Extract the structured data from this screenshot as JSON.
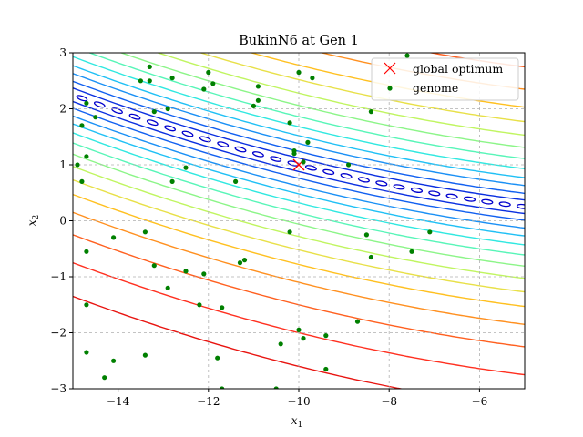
{
  "chart_data": {
    "type": "scatter",
    "title": "BukinN6 at Gen 1",
    "xlabel": "x",
    "xlabel_sub": "1",
    "ylabel": "x",
    "ylabel_sub": "2",
    "xlim": [
      -15,
      -5
    ],
    "ylim": [
      -3,
      3
    ],
    "xticks": [
      -14,
      -12,
      -10,
      -8,
      -6
    ],
    "yticks": [
      -3,
      -2,
      -1,
      0,
      1,
      2,
      3
    ],
    "xtick_labels": [
      "−14",
      "−12",
      "−10",
      "−8",
      "−6"
    ],
    "ytick_labels": [
      "−3",
      "−2",
      "−1",
      "0",
      "1",
      "2",
      "3"
    ],
    "grid": true,
    "legend_position": "top-right",
    "background_function": "BukinN6 contour",
    "series": [
      {
        "name": "global optimum",
        "marker": "x",
        "color": "#ff0000",
        "points": [
          [
            -10,
            1
          ]
        ]
      },
      {
        "name": "genome",
        "marker": "dot",
        "color": "#008000",
        "points": [
          [
            -14.7,
            2.1
          ],
          [
            -14.8,
            1.7
          ],
          [
            -14.5,
            1.85
          ],
          [
            -14.9,
            1.0
          ],
          [
            -14.8,
            0.7
          ],
          [
            -14.7,
            1.15
          ],
          [
            -14.1,
            -0.3
          ],
          [
            -14.7,
            -0.55
          ],
          [
            -14.7,
            -1.5
          ],
          [
            -14.7,
            -2.35
          ],
          [
            -14.3,
            -2.8
          ],
          [
            -14.1,
            -2.5
          ],
          [
            -13.5,
            2.5
          ],
          [
            -13.3,
            2.75
          ],
          [
            -13.3,
            2.5
          ],
          [
            -13.2,
            1.95
          ],
          [
            -12.9,
            2.0
          ],
          [
            -12.8,
            2.55
          ],
          [
            -12.1,
            2.35
          ],
          [
            -12.0,
            2.65
          ],
          [
            -11.9,
            2.45
          ],
          [
            -12.5,
            0.95
          ],
          [
            -12.8,
            0.7
          ],
          [
            -13.4,
            -0.2
          ],
          [
            -13.2,
            -0.8
          ],
          [
            -12.5,
            -0.9
          ],
          [
            -12.9,
            -1.2
          ],
          [
            -12.1,
            -0.95
          ],
          [
            -12.2,
            -1.5
          ],
          [
            -11.7,
            -1.55
          ],
          [
            -13.4,
            -2.4
          ],
          [
            -11.8,
            -2.45
          ],
          [
            -11.7,
            -3.0
          ],
          [
            -11.2,
            -0.7
          ],
          [
            -11.3,
            -0.75
          ],
          [
            -11.4,
            0.7
          ],
          [
            -11.0,
            2.05
          ],
          [
            -10.9,
            2.15
          ],
          [
            -10.9,
            2.4
          ],
          [
            -10.2,
            1.75
          ],
          [
            -10.1,
            1.2
          ],
          [
            -10.1,
            1.25
          ],
          [
            -9.9,
            1.05
          ],
          [
            -9.8,
            1.4
          ],
          [
            -10.0,
            2.65
          ],
          [
            -9.7,
            2.55
          ],
          [
            -10.2,
            -0.2
          ],
          [
            -10.4,
            -2.2
          ],
          [
            -10.0,
            -1.95
          ],
          [
            -9.9,
            -2.1
          ],
          [
            -10.5,
            -3.0
          ],
          [
            -9.4,
            -2.05
          ],
          [
            -9.4,
            -2.65
          ],
          [
            -8.9,
            1.0
          ],
          [
            -8.5,
            -0.25
          ],
          [
            -8.7,
            -1.8
          ],
          [
            -8.4,
            -0.65
          ],
          [
            -8.4,
            1.95
          ],
          [
            -7.6,
            2.95
          ],
          [
            -7.5,
            -0.55
          ],
          [
            -7.1,
            -0.2
          ]
        ]
      }
    ]
  },
  "contour_colors": [
    "#0000cd",
    "#0a2fe0",
    "#1260f0",
    "#1a90f5",
    "#20c0f5",
    "#30e8e0",
    "#58f5b8",
    "#8cf588",
    "#c0f560",
    "#e8e048",
    "#ffc020",
    "#ff9020",
    "#ff6020",
    "#ff3020",
    "#e81410"
  ]
}
